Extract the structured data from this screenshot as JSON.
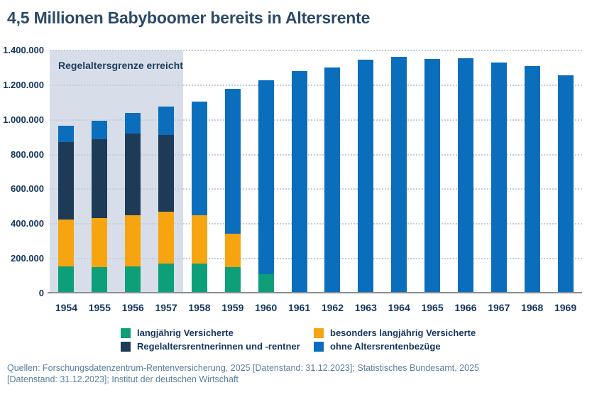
{
  "title": "4,5 Millionen Babyboomer bereits in Altersrente",
  "colors": {
    "title_text": "#2b4a68",
    "axis_text": "#14355f",
    "annotation_band_bg": "#d8dee9",
    "gridline": "#c2cddd",
    "baseline": "#8a8f94",
    "footer_text": "#5a7fa0",
    "series_green": "#0d9f78",
    "series_orange": "#f6a511",
    "series_navy": "#1d3b57",
    "series_blue": "#0a6ebd"
  },
  "chart_data": {
    "type": "bar",
    "stacked": true,
    "title": "4,5 Millionen Babyboomer bereits in Altersrente",
    "categories": [
      "1954",
      "1955",
      "1956",
      "1957",
      "1958",
      "1959",
      "1960",
      "1961",
      "1962",
      "1963",
      "1964",
      "1965",
      "1966",
      "1967",
      "1968",
      "1969"
    ],
    "series": [
      {
        "name": "langjährig Versicherte",
        "color": "#0d9f78",
        "values": [
          155000,
          150000,
          155000,
          170000,
          170000,
          150000,
          110000,
          0,
          0,
          0,
          0,
          0,
          0,
          0,
          0,
          0
        ]
      },
      {
        "name": "besonders langjährig Versicherte",
        "color": "#f6a511",
        "values": [
          270000,
          285000,
          295000,
          300000,
          280000,
          195000,
          0,
          0,
          0,
          0,
          0,
          0,
          0,
          0,
          0,
          0
        ]
      },
      {
        "name": "Regelaltersrentnerinnen und -rentner",
        "color": "#1d3b57",
        "values": [
          445000,
          455000,
          470000,
          445000,
          0,
          0,
          0,
          0,
          0,
          0,
          0,
          0,
          0,
          0,
          0,
          0
        ]
      },
      {
        "name": "ohne Altersrentenbezüge",
        "color": "#0a6ebd",
        "values": [
          95000,
          105000,
          120000,
          160000,
          655000,
          835000,
          1120000,
          1280000,
          1300000,
          1345000,
          1365000,
          1350000,
          1355000,
          1330000,
          1310000,
          1255000
        ]
      }
    ],
    "totals": [
      965000,
      995000,
      1040000,
      1075000,
      1105000,
      1180000,
      1230000,
      1280000,
      1300000,
      1345000,
      1365000,
      1350000,
      1355000,
      1330000,
      1310000,
      1255000
    ],
    "ylim": [
      0,
      1400000
    ],
    "yticks": [
      {
        "value": 1400000,
        "label": "1.400.000"
      },
      {
        "value": 1200000,
        "label": "1.200.000"
      },
      {
        "value": 1000000,
        "label": "1.000.000"
      },
      {
        "value": 800000,
        "label": "800.000"
      },
      {
        "value": 600000,
        "label": "600.000"
      },
      {
        "value": 400000,
        "label": "400.000"
      },
      {
        "value": 200000,
        "label": "200.000"
      },
      {
        "value": 0,
        "label": "0"
      }
    ],
    "grid": "horizontal-dotted",
    "legend_position": "bottom",
    "annotation": {
      "label": "Regelaltersgrenze erreicht",
      "category_span": [
        "1954",
        "1957"
      ]
    }
  },
  "footer": {
    "line1": "Quellen: Forschungsdatenzentrum-Rentenversicherung, 2025 [Datenstand: 31.12.2023]; Statistisches Bundesamt, 2025",
    "line2": "[Datenstand: 31.12.2023];  Institut der deutschen Wirtschaft"
  }
}
